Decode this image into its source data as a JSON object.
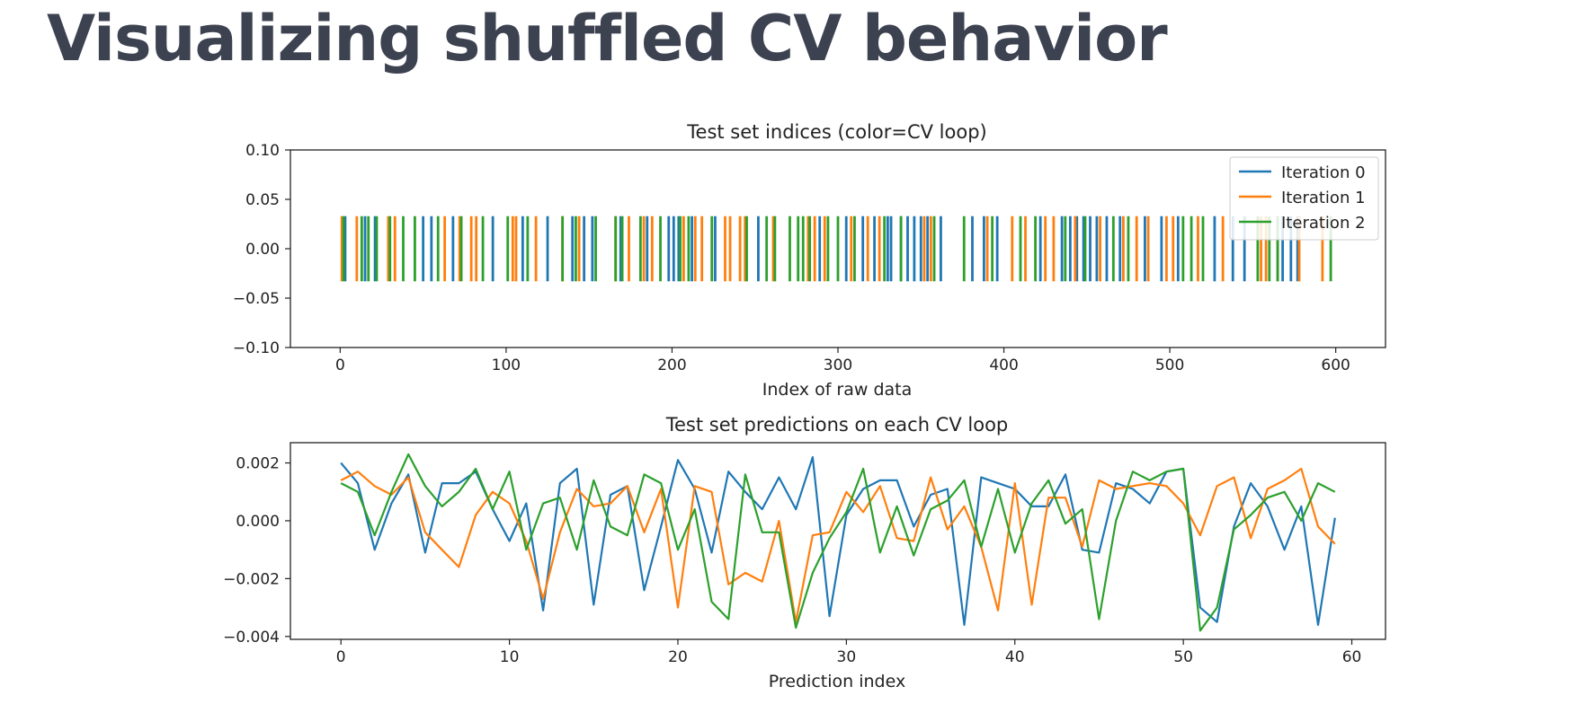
{
  "slide": {
    "title": "Visualizing shuffled CV behavior"
  },
  "colors": {
    "series": [
      "#1f77b4",
      "#ff7f0e",
      "#2ca02c"
    ],
    "title_text": "#3d4251"
  },
  "chart_data": [
    {
      "type": "event",
      "title": "Test set indices (color=CV loop)",
      "xlabel": "Index of raw data",
      "ylabel": "",
      "xlim": [
        -30,
        630
      ],
      "ylim": [
        -0.1,
        0.1
      ],
      "xticks": [
        0,
        100,
        200,
        300,
        400,
        500,
        600
      ],
      "yticks": [
        -0.1,
        -0.05,
        0.0,
        0.05,
        0.1
      ],
      "ytick_labels": [
        "−0.10",
        "−0.05",
        "0.00",
        "0.05",
        "0.10"
      ],
      "event_extent": [
        -0.033,
        0.033
      ],
      "grid": false,
      "legend_position": "top-right",
      "series": [
        {
          "name": "Iteration 0",
          "color": "#1f77b4",
          "x": [
            3,
            15,
            21,
            50,
            55,
            68,
            92,
            110,
            125,
            140,
            147,
            152,
            169,
            185,
            198,
            201,
            204,
            212,
            226,
            252,
            289,
            305,
            315,
            322,
            330,
            332,
            338,
            342,
            346,
            350,
            354,
            362,
            381,
            388,
            396,
            422,
            435,
            440,
            444,
            448,
            452,
            456,
            462,
            470,
            485,
            495,
            505,
            527,
            538,
            545,
            568,
            573,
            577
          ]
        },
        {
          "name": "Iteration 1",
          "color": "#ff7f0e",
          "x": [
            1,
            10,
            29,
            33,
            63,
            72,
            79,
            82,
            104,
            106,
            118,
            134,
            144,
            166,
            174,
            183,
            188,
            207,
            214,
            218,
            232,
            235,
            241,
            244,
            261,
            282,
            286,
            292,
            308,
            318,
            325,
            352,
            356,
            390,
            405,
            413,
            425,
            430,
            443,
            458,
            472,
            480,
            487,
            498,
            502,
            517,
            532,
            555,
            558,
            565,
            578,
            592
          ]
        },
        {
          "name": "Iteration 2",
          "color": "#2ca02c",
          "x": [
            2,
            13,
            17,
            22,
            30,
            38,
            45,
            59,
            73,
            86,
            101,
            113,
            134,
            142,
            154,
            166,
            170,
            181,
            193,
            205,
            210,
            224,
            245,
            257,
            262,
            271,
            276,
            279,
            283,
            294,
            300,
            310,
            328,
            338,
            358,
            376,
            393,
            410,
            419,
            437,
            449,
            466,
            475,
            508,
            513,
            520,
            553,
            560,
            565,
            597
          ]
        }
      ]
    },
    {
      "type": "line",
      "title": "Test set predictions on each CV loop",
      "xlabel": "Prediction index",
      "ylabel": "",
      "xlim": [
        -3,
        62
      ],
      "ylim": [
        -0.0041,
        0.0027
      ],
      "xticks": [
        0,
        10,
        20,
        30,
        40,
        50,
        60
      ],
      "yticks": [
        -0.004,
        -0.002,
        0.0,
        0.002
      ],
      "ytick_labels": [
        "−0.004",
        "−0.002",
        "0.000",
        "0.002"
      ],
      "grid": false,
      "x": [
        0,
        1,
        2,
        3,
        4,
        5,
        6,
        7,
        8,
        9,
        10,
        11,
        12,
        13,
        14,
        15,
        16,
        17,
        18,
        19,
        20,
        21,
        22,
        23,
        24,
        25,
        26,
        27,
        28,
        29,
        30,
        31,
        32,
        33,
        34,
        35,
        36,
        37,
        38,
        39,
        40,
        41,
        42,
        43,
        44,
        45,
        46,
        47,
        48,
        49,
        50,
        51,
        52,
        53,
        54,
        55,
        56,
        57,
        58,
        59
      ],
      "series": [
        {
          "name": "Iteration 0",
          "color": "#1f77b4",
          "values": [
            0.002,
            0.0013,
            -0.001,
            0.0006,
            0.0016,
            -0.0011,
            0.0013,
            0.0013,
            0.0017,
            0.0004,
            -0.0007,
            0.0006,
            -0.0031,
            0.0013,
            0.0018,
            -0.0029,
            0.0009,
            0.0012,
            -0.0024,
            -0.0002,
            0.0021,
            0.0011,
            -0.0011,
            0.0017,
            0.001,
            0.0004,
            0.0015,
            0.0004,
            0.0022,
            -0.0033,
            0.0002,
            0.0011,
            0.0014,
            0.0014,
            -0.0002,
            0.0009,
            0.0011,
            -0.0036,
            0.0015,
            0.0013,
            0.0011,
            0.0005,
            0.0005,
            0.0016,
            -0.001,
            -0.0011,
            0.0013,
            0.0011,
            0.0006,
            0.0017,
            0.0018,
            -0.003,
            -0.0035,
            -0.0002,
            0.0013,
            0.0005,
            -0.001,
            0.0005,
            -0.0036,
            0.0001
          ]
        },
        {
          "name": "Iteration 1",
          "color": "#ff7f0e",
          "values": [
            0.0014,
            0.0017,
            0.0012,
            0.0009,
            0.0015,
            -0.0004,
            -0.001,
            -0.0016,
            0.0002,
            0.001,
            0.0006,
            -0.0007,
            -0.0027,
            -0.0004,
            0.0011,
            0.0005,
            0.0006,
            0.0012,
            -0.0004,
            0.0011,
            -0.003,
            0.0012,
            0.001,
            -0.0022,
            -0.0018,
            -0.0021,
            0.0,
            -0.0035,
            -0.0005,
            -0.0004,
            0.001,
            0.0003,
            0.0012,
            -0.0006,
            -0.0007,
            0.0015,
            -0.0003,
            0.0005,
            -0.0009,
            -0.0031,
            0.0013,
            -0.0029,
            0.0008,
            0.0008,
            -0.0009,
            0.0014,
            0.0011,
            0.0012,
            0.0013,
            0.0012,
            0.0006,
            -0.0005,
            0.0012,
            0.0015,
            -0.0006,
            0.0011,
            0.0014,
            0.0018,
            -0.0002,
            -0.0008
          ]
        },
        {
          "name": "Iteration 2",
          "color": "#2ca02c",
          "values": [
            0.0013,
            0.001,
            -0.0005,
            0.001,
            0.0023,
            0.0012,
            0.0005,
            0.001,
            0.0018,
            0.0004,
            0.0017,
            -0.001,
            0.0006,
            0.0008,
            -0.001,
            0.0014,
            -0.0002,
            -0.0005,
            0.0016,
            0.0013,
            -0.001,
            0.0004,
            -0.0028,
            -0.0034,
            0.0016,
            -0.0004,
            -0.0004,
            -0.0037,
            -0.0018,
            -0.0006,
            0.0003,
            0.0018,
            -0.0011,
            0.0005,
            -0.0012,
            0.0004,
            0.0007,
            0.0014,
            -0.0009,
            0.0011,
            -0.0011,
            0.0006,
            0.0014,
            -0.0001,
            0.0004,
            -0.0034,
            0.0,
            0.0017,
            0.0014,
            0.0017,
            0.0018,
            -0.0038,
            -0.003,
            -0.0003,
            0.0002,
            0.0008,
            0.001,
            0.0,
            0.0013,
            0.001
          ]
        }
      ]
    }
  ]
}
